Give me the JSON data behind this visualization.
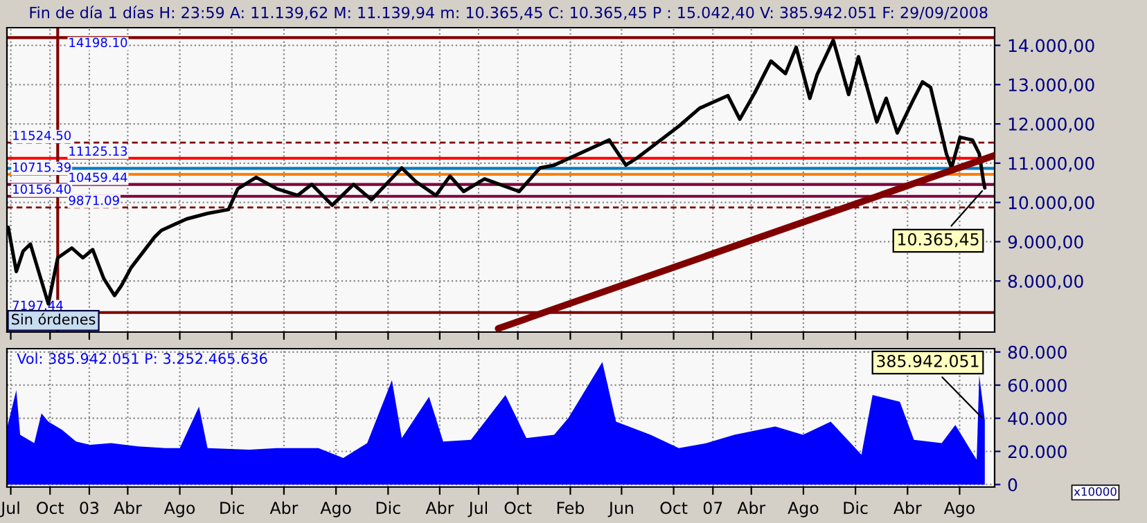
{
  "chart_data": [
    {
      "type": "line",
      "title": "Fin de día 1 días H: 23:59 A: 11.139,62 M: 11.139,94 m: 10.365,45 C: 10.365,45 P : 15.042,40 V: 385.942.051 F: 29/09/2008",
      "series": [
        {
          "color": "#000000",
          "x": [
            "2002-06-25",
            "2002-07-14",
            "2002-07-30",
            "2002-08-16",
            "2002-09-27",
            "2002-10-19",
            "2002-11-21",
            "2002-12-17",
            "2003-01-09",
            "2003-02-04",
            "2003-03-01",
            "2003-03-17",
            "2003-04-09",
            "2003-06-03",
            "2003-06-19",
            "2003-08-17",
            "2003-10-05",
            "2003-11-23",
            "2003-12-15",
            "2004-01-27",
            "2004-03-15",
            "2004-05-03",
            "2004-06-05",
            "2004-07-23",
            "2004-09-11",
            "2004-10-23",
            "2005-01-02",
            "2005-02-04",
            "2005-03-23",
            "2005-04-25",
            "2005-05-27",
            "2005-07-15",
            "2005-10-04",
            "2005-11-22",
            "2005-12-25",
            "2006-05-03",
            "2006-06-11",
            "2006-07-07",
            "2006-10-13",
            "2006-12-01",
            "2007-02-05",
            "2007-03-05",
            "2007-04-09",
            "2007-05-17",
            "2007-06-20",
            "2007-07-15",
            "2007-08-16",
            "2007-09-02",
            "2007-10-10",
            "2007-11-15",
            "2007-12-08",
            "2008-01-20",
            "2008-02-11",
            "2008-03-08",
            "2008-04-13",
            "2008-05-06",
            "2008-05-25",
            "2008-07-01",
            "2008-07-13",
            "2008-08-02",
            "2008-08-31",
            "2008-09-16",
            "2008-09-26",
            "2008-09-29"
          ],
          "values": [
            9370,
            8240,
            8760,
            8940,
            7420,
            8590,
            8840,
            8590,
            8800,
            8060,
            7630,
            7880,
            8340,
            9120,
            9290,
            9580,
            9720,
            9820,
            10350,
            10640,
            10350,
            10180,
            10460,
            9930,
            10460,
            10070,
            10880,
            10530,
            10180,
            10670,
            10280,
            10600,
            10280,
            10880,
            10950,
            11590,
            10950,
            11130,
            11940,
            12400,
            12720,
            12120,
            12790,
            13600,
            13280,
            13950,
            12650,
            13250,
            14130,
            12750,
            13710,
            12050,
            12650,
            11770,
            12580,
            13070,
            12930,
            11240,
            10880,
            11660,
            11590,
            11240,
            10530,
            10370
          ]
        },
        {
          "color": "#800000",
          "x": [
            "2005-08-16",
            "2008-10-22"
          ],
          "values": [
            6790,
            11200
          ]
        }
      ],
      "xlim": [
        "2002-06-22",
        "2008-10-22"
      ],
      "xticks": [
        {
          "value": "2002-07-01",
          "label": null
        },
        {
          "value": "2002-10-01",
          "label": null
        },
        {
          "value": "2003-01-01",
          "label": null
        },
        {
          "value": "2003-04-01",
          "label": null
        },
        {
          "value": "2003-08-01",
          "label": null
        },
        {
          "value": "2003-12-01",
          "label": null
        },
        {
          "value": "2004-04-01",
          "label": null
        },
        {
          "value": "2004-08-01",
          "label": null
        },
        {
          "value": "2004-12-01",
          "label": null
        },
        {
          "value": "2005-04-01",
          "label": null
        },
        {
          "value": "2005-07-01",
          "label": null
        },
        {
          "value": "2005-10-01",
          "label": null
        },
        {
          "value": "2006-02-01",
          "label": null
        },
        {
          "value": "2006-06-01",
          "label": null
        },
        {
          "value": "2006-10-01",
          "label": null
        },
        {
          "value": "2007-01-01",
          "label": null
        },
        {
          "value": "2007-04-01",
          "label": null
        },
        {
          "value": "2007-08-01",
          "label": null
        },
        {
          "value": "2007-12-01",
          "label": null
        },
        {
          "value": "2008-04-01",
          "label": null
        },
        {
          "value": "2008-08-01",
          "label": null
        }
      ],
      "ylim": [
        6700,
        14450
      ],
      "yticks": [
        {
          "value": 8000,
          "label": "8.000,00"
        },
        {
          "value": 9000,
          "label": "9.000,00"
        },
        {
          "value": 10000,
          "label": "10.000,00"
        },
        {
          "value": 11000,
          "label": "11.000,00"
        },
        {
          "value": 12000,
          "label": "12.000,00"
        },
        {
          "value": 13000,
          "label": "13.000,00"
        },
        {
          "value": 14000,
          "label": "14.000,00"
        }
      ],
      "tick_labels": "y",
      "grid": true,
      "ref_lines": [
        {
          "axis": "y",
          "value": 14198.1,
          "label": "14198.10",
          "color": "#800000",
          "line_style": "solid"
        },
        {
          "axis": "y",
          "value": 11524.5,
          "label": "11524.50",
          "color": "#800000",
          "line_style": "dashed"
        },
        {
          "axis": "y",
          "value": 11125.13,
          "label": "11125.13",
          "color": "#ff0000",
          "line_style": "solid"
        },
        {
          "axis": "y",
          "value": 10867,
          "color": "#0080c0",
          "line_style": "solid"
        },
        {
          "axis": "y",
          "value": 10715.39,
          "label": "10715.39",
          "color": "#ff8000",
          "line_style": "solid"
        },
        {
          "axis": "y",
          "value": 10459.44,
          "label": "10459.44",
          "color": "#800040",
          "line_style": "solid"
        },
        {
          "axis": "y",
          "value": 10156.4,
          "label": "10156.40",
          "color": "#800040",
          "line_style": "solid"
        },
        {
          "axis": "y",
          "value": 9871.09,
          "label": "9871.09",
          "color": "#800000",
          "line_style": "dashed"
        },
        {
          "axis": "y",
          "value": 7197.44,
          "label": "7197.44",
          "color": "#800000",
          "line_style": "solid"
        },
        {
          "axis": "x",
          "value": "2002-10-19",
          "color": "#800000",
          "line_style": "solid"
        }
      ],
      "annotations": [
        "Sin órdenes",
        {
          "text": "10.365,45",
          "x": "2008-09-29",
          "y": 10365
        }
      ]
    },
    {
      "type": "area",
      "title": "Vol: 385.942.051 P: 3.252.465.636",
      "series": [
        {
          "color": "#0000ff",
          "x": [
            "2002-06-22",
            "2002-07-14",
            "2002-07-23",
            "2002-08-25",
            "2002-09-11",
            "2002-09-27",
            "2002-10-29",
            "2002-12-01",
            "2003-01-03",
            "2003-02-21",
            "2003-04-25",
            "2003-06-29",
            "2003-08-01",
            "2003-09-15",
            "2003-10-05",
            "2004-01-11",
            "2004-03-15",
            "2004-06-21",
            "2004-08-18",
            "2004-10-13",
            "2004-12-10",
            "2005-01-02",
            "2005-03-07",
            "2005-04-09",
            "2005-06-13",
            "2005-09-02",
            "2005-10-21",
            "2005-12-25",
            "2006-01-27",
            "2006-04-17",
            "2006-05-19",
            "2006-08-08",
            "2006-10-13",
            "2006-12-17",
            "2007-02-20",
            "2007-05-27",
            "2007-07-31",
            "2007-10-04",
            "2007-12-15",
            "2008-01-10",
            "2008-03-14",
            "2008-04-16",
            "2008-06-20",
            "2008-07-22",
            "2008-08-24",
            "2008-09-10",
            "2008-09-16",
            "2008-09-29"
          ],
          "values": [
            34000,
            57000,
            30000,
            25000,
            43000,
            38000,
            33000,
            26000,
            24000,
            25000,
            23000,
            22000,
            22000,
            47000,
            22000,
            21000,
            22000,
            22000,
            16000,
            25000,
            63000,
            28000,
            53000,
            26000,
            27000,
            54000,
            28000,
            30000,
            40000,
            74000,
            38000,
            30000,
            22000,
            25000,
            30000,
            35000,
            30000,
            38000,
            18000,
            54000,
            50000,
            27000,
            25000,
            36000,
            22000,
            15000,
            66000,
            39000
          ]
        }
      ],
      "xlim": [
        "2002-06-22",
        "2008-10-22"
      ],
      "xticks": [
        {
          "value": "2002-07-01",
          "label": "Jul"
        },
        {
          "value": "2002-10-01",
          "label": "Oct"
        },
        {
          "value": "2003-01-01",
          "label": "03"
        },
        {
          "value": "2003-04-01",
          "label": "Abr"
        },
        {
          "value": "2003-08-01",
          "label": "Ago"
        },
        {
          "value": "2003-12-01",
          "label": "Dic"
        },
        {
          "value": "2004-04-01",
          "label": "Abr"
        },
        {
          "value": "2004-08-01",
          "label": "Ago"
        },
        {
          "value": "2004-12-01",
          "label": "Dic"
        },
        {
          "value": "2005-04-01",
          "label": "Abr"
        },
        {
          "value": "2005-07-01",
          "label": "Jul"
        },
        {
          "value": "2005-10-01",
          "label": "Oct"
        },
        {
          "value": "2006-02-01",
          "label": "Feb"
        },
        {
          "value": "2006-06-01",
          "label": "Jun"
        },
        {
          "value": "2006-10-01",
          "label": "Oct"
        },
        {
          "value": "2007-01-01",
          "label": "07"
        },
        {
          "value": "2007-04-01",
          "label": "Abr"
        },
        {
          "value": "2007-08-01",
          "label": "Ago"
        },
        {
          "value": "2007-12-01",
          "label": "Dic"
        },
        {
          "value": "2008-04-01",
          "label": "Abr"
        },
        {
          "value": "2008-08-01",
          "label": "Ago"
        }
      ],
      "ylim": [
        -1500,
        82000
      ],
      "yticks": [
        {
          "value": 0,
          "label": "0"
        },
        {
          "value": 20000,
          "label": "20.000"
        },
        {
          "value": 40000,
          "label": "40.000"
        },
        {
          "value": 60000,
          "label": "60.000"
        },
        {
          "value": 80000,
          "label": "80.000"
        }
      ],
      "grid": true,
      "annotations": [
        "x10000",
        {
          "text": "385.942.051",
          "x": "2008-09-29",
          "y": 38594
        }
      ]
    }
  ]
}
